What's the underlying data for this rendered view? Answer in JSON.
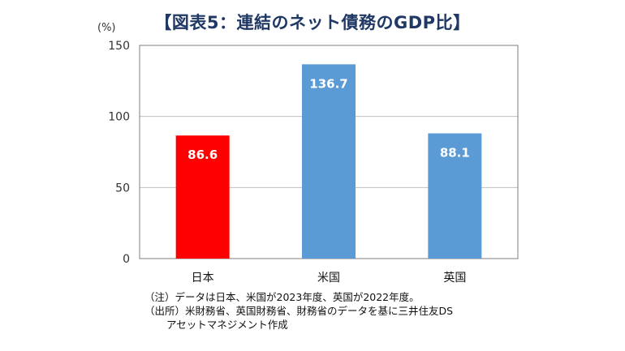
{
  "title": "【図表5：連結のネット債務のGDP比】",
  "chart_data": {
    "type": "bar",
    "unit_label": "(%)",
    "categories": [
      "日本",
      "米国",
      "英国"
    ],
    "values": [
      86.6,
      136.7,
      88.1
    ],
    "value_labels": [
      "86.6",
      "136.7",
      "88.1"
    ],
    "bar_colors": [
      "#ff0000",
      "#5b9bd5",
      "#5b9bd5"
    ],
    "ylim": [
      0,
      150
    ],
    "yticks": [
      0,
      50,
      100,
      150
    ],
    "grid": true,
    "xlabel": "",
    "ylabel": ""
  },
  "notes": {
    "note_label": "（注）",
    "note_text": "データは日本、米国が2023年度、英国が2022年度。",
    "source_label": "（出所）",
    "source_text_1": "米財務省、英国財務省、財務省のデータを基に三井住友DS",
    "source_text_2": "アセットマネジメント作成"
  }
}
